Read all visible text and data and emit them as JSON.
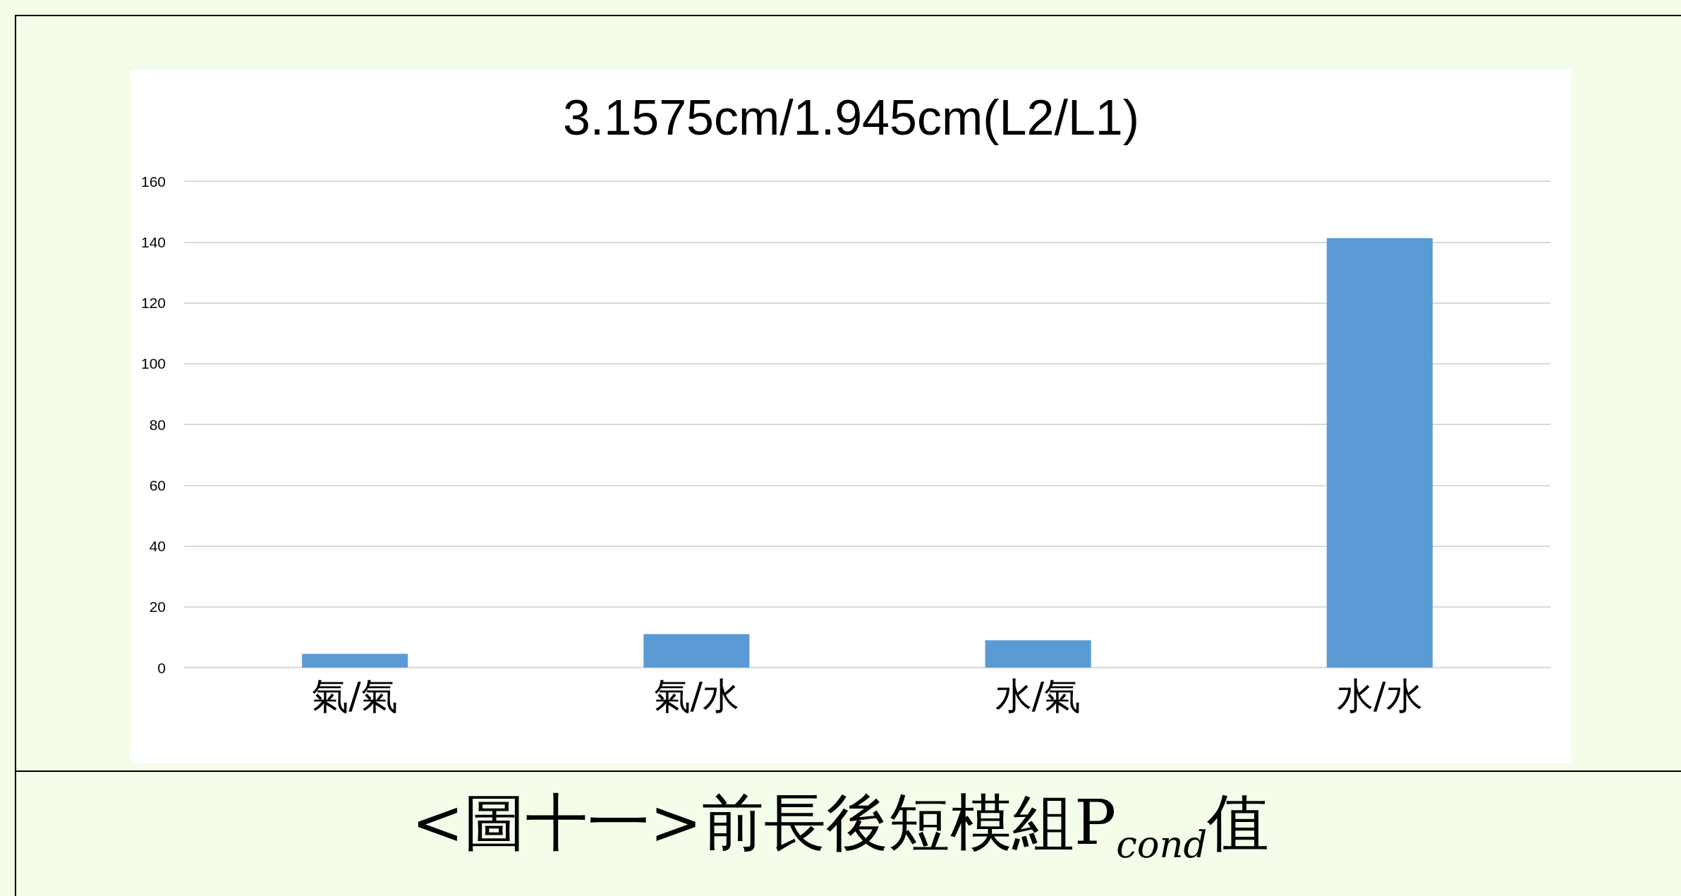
{
  "chart_data": {
    "type": "bar",
    "title": "3.1575cm/1.945cm(L2/L1)",
    "categories": [
      "氣/氣",
      "氣/水",
      "水/氣",
      "水/水"
    ],
    "values": [
      4.5,
      11.0,
      9.0,
      141.3
    ],
    "color": "#5b9bd5",
    "ylim": [
      0,
      160
    ],
    "yticks": [
      0,
      20,
      40,
      60,
      80,
      100,
      120,
      140,
      160
    ],
    "grid": "y",
    "annotations": [
      "<圖十一>前長後短模組P$_{cond}$值"
    ]
  }
}
